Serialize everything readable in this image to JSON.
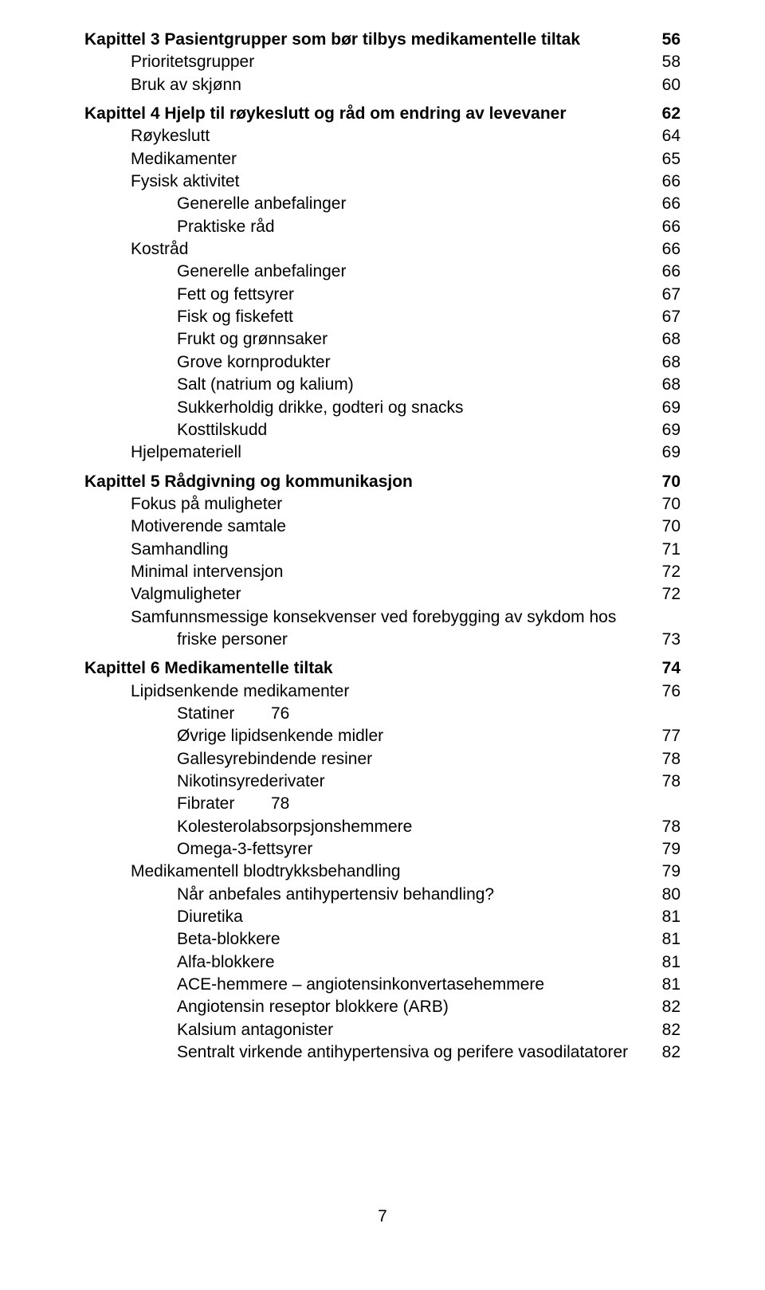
{
  "chapters": {
    "ch3": {
      "title": "Kapittel 3 Pasientgrupper som bør tilbys medikamentelle tiltak",
      "page": "56",
      "items": [
        {
          "label": "Prioritetsgrupper",
          "page": "58"
        },
        {
          "label": "Bruk av skjønn",
          "page": "60"
        }
      ]
    },
    "ch4": {
      "title": "Kapittel 4 Hjelp til røykeslutt og råd om endring av levevaner",
      "page": "62",
      "items": [
        {
          "label": "Røykeslutt",
          "page": "64"
        },
        {
          "label": "Medikamenter",
          "page": "65"
        },
        {
          "label": "Fysisk aktivitet",
          "page": "66"
        },
        {
          "label": "Generelle anbefalinger",
          "page": "66",
          "level": 2
        },
        {
          "label": "Praktiske råd",
          "page": "66",
          "level": 2
        },
        {
          "label": "Kostråd",
          "page": "66"
        },
        {
          "label": "Generelle anbefalinger",
          "page": "66",
          "level": 2
        },
        {
          "label": "Fett og fettsyrer",
          "page": "67",
          "level": 2
        },
        {
          "label": "Fisk og fiskefett",
          "page": "67",
          "level": 2
        },
        {
          "label": "Frukt og grønnsaker",
          "page": "68",
          "level": 2
        },
        {
          "label": "Grove kornprodukter",
          "page": "68",
          "level": 2
        },
        {
          "label": "Salt (natrium og kalium)",
          "page": "68",
          "level": 2
        },
        {
          "label": "Sukkerholdig drikke, godteri og snacks",
          "page": "69",
          "level": 2
        },
        {
          "label": "Kosttilskudd",
          "page": "69",
          "level": 2
        },
        {
          "label": "Hjelpemateriell",
          "page": "69"
        }
      ]
    },
    "ch5": {
      "title": "Kapittel 5 Rådgivning og kommunikasjon",
      "page": "70",
      "items": [
        {
          "label": "Fokus på muligheter",
          "page": "70"
        },
        {
          "label": "Motiverende samtale",
          "page": "70"
        },
        {
          "label": "Samhandling",
          "page": "71"
        },
        {
          "label": "Minimal intervensjon",
          "page": "72"
        },
        {
          "label": "Valgmuligheter",
          "page": "72"
        }
      ],
      "multi": {
        "line1": "Samfunnsmessige konsekvenser ved forebygging av sykdom hos",
        "line2": "friske personer",
        "page": "73"
      }
    },
    "ch6": {
      "title": "Kapittel 6 Medikamentelle tiltak",
      "page": "74",
      "items1": [
        {
          "label": "Lipidsenkende medikamenter",
          "page": "76"
        }
      ],
      "statiner": {
        "label": "Statiner",
        "page": "76"
      },
      "items2": [
        {
          "label": "Øvrige lipidsenkende midler",
          "page": "77",
          "level": 2
        },
        {
          "label": "Gallesyrebindende resiner",
          "page": "78",
          "level": 2
        },
        {
          "label": "Nikotinsyrederivater",
          "page": "78",
          "level": 2
        }
      ],
      "fibrater": {
        "label": "Fibrater",
        "page": "78"
      },
      "items3": [
        {
          "label": "Kolesterolabsorpsjonshemmere",
          "page": "78",
          "level": 2
        },
        {
          "label": "Omega-3-fettsyrer",
          "page": "79",
          "level": 2
        },
        {
          "label": "Medikamentell blodtrykksbehandling",
          "page": "79"
        },
        {
          "label": "Når anbefales antihypertensiv behandling?",
          "page": "80",
          "level": 2
        },
        {
          "label": "Diuretika",
          "page": "81",
          "level": 2
        },
        {
          "label": "Beta-blokkere",
          "page": "81",
          "level": 2
        },
        {
          "label": "Alfa-blokkere",
          "page": "81",
          "level": 2
        },
        {
          "label": "ACE-hemmere – angiotensinkonvertasehemmere",
          "page": "81",
          "level": 2
        },
        {
          "label": "Angiotensin reseptor blokkere (ARB)",
          "page": "82",
          "level": 2
        },
        {
          "label": "Kalsium antagonister",
          "page": "82",
          "level": 2
        },
        {
          "label": "Sentralt virkende antihypertensiva og perifere vasodilatatorer",
          "page": "82",
          "level": 2
        }
      ]
    }
  },
  "footer": "7"
}
